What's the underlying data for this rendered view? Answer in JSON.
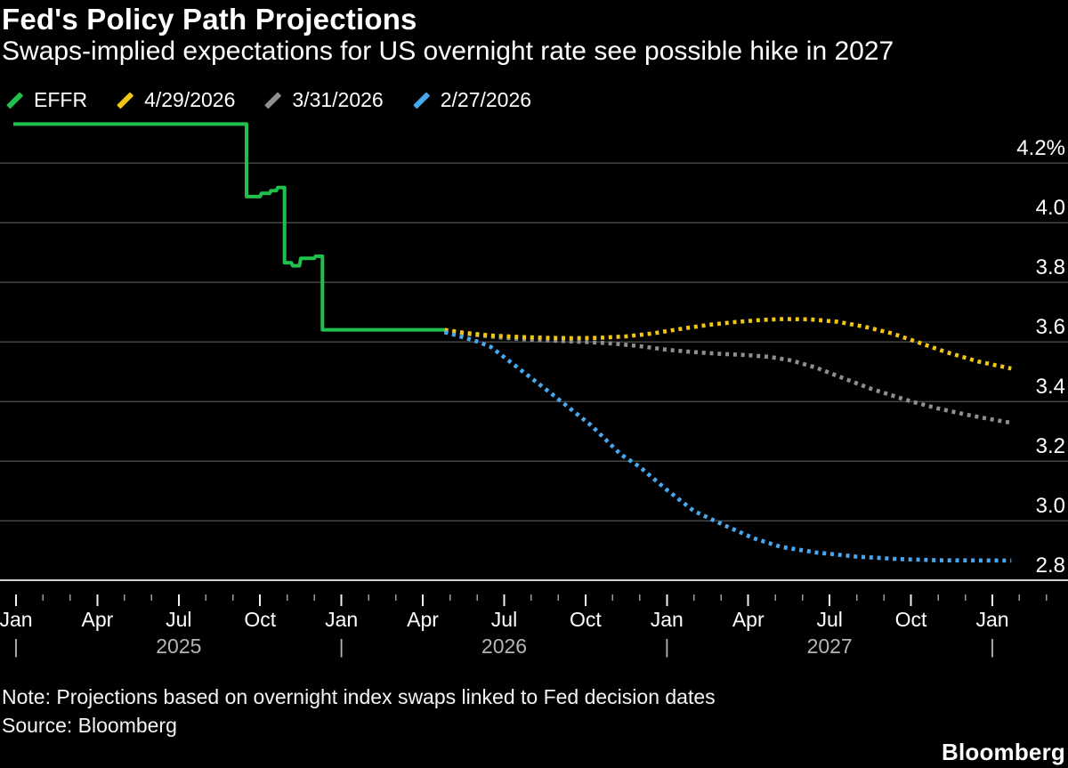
{
  "header": {
    "title": "Fed's Policy Path Projections",
    "subtitle": "Swaps-implied expectations for US overnight rate see possible hike in 2027"
  },
  "legend": [
    {
      "label": "EFFR",
      "color": "#21bf4e",
      "marker": "slash-icon"
    },
    {
      "label": "4/29/2026",
      "color": "#f0c514",
      "marker": "slash-icon"
    },
    {
      "label": "3/31/2026",
      "color": "#8f8f8f",
      "marker": "slash-icon"
    },
    {
      "label": "2/27/2026",
      "color": "#47a8f0",
      "marker": "slash-icon"
    }
  ],
  "footer": {
    "note": "Note: Projections based on overnight index swaps linked to Fed decision dates",
    "source": "Source: Bloomberg",
    "brand": "Bloomberg"
  },
  "colors": {
    "background": "#000000",
    "grid": "#454545",
    "axis_line": "#cfcfcf",
    "tick_major": "#f0f0f0",
    "tick_minor": "#9a9a9a",
    "axis_label": "#ffffff",
    "year_label": "#b5b5b5"
  },
  "chart_data": {
    "type": "line",
    "title": "Fed's Policy Path Projections",
    "x_unit": "months since Jan 2025",
    "x_range_months": [
      0,
      36
    ],
    "ylim": [
      2.8,
      4.2
    ],
    "grid": "horizontal",
    "legend_position": "top",
    "y_axis": {
      "side": "right",
      "ticks": [
        {
          "r": 4.2,
          "label": "4.2%"
        },
        {
          "r": 4.0,
          "label": "4.0"
        },
        {
          "r": 3.8,
          "label": "3.8"
        },
        {
          "r": 3.6,
          "label": "3.6"
        },
        {
          "r": 3.4,
          "label": "3.4"
        },
        {
          "r": 3.2,
          "label": "3.2"
        },
        {
          "r": 3.0,
          "label": "3.0"
        },
        {
          "r": 2.8,
          "label": "2.8"
        }
      ]
    },
    "x_axis": {
      "minor_tick_months": [
        0,
        1,
        2,
        3,
        4,
        5,
        6,
        7,
        8,
        9,
        10,
        11,
        12,
        13,
        14,
        15,
        16,
        17,
        18,
        19,
        20,
        21,
        22,
        23,
        24,
        25,
        26,
        27,
        28,
        29,
        30,
        31,
        32,
        33,
        34,
        35,
        36,
        37,
        38
      ],
      "quarter_labels": [
        {
          "m": 0,
          "label": "Jan"
        },
        {
          "m": 3,
          "label": "Apr"
        },
        {
          "m": 6,
          "label": "Jul"
        },
        {
          "m": 9,
          "label": "Oct"
        },
        {
          "m": 12,
          "label": "Jan"
        },
        {
          "m": 15,
          "label": "Apr"
        },
        {
          "m": 18,
          "label": "Jul"
        },
        {
          "m": 21,
          "label": "Oct"
        },
        {
          "m": 24,
          "label": "Jan"
        },
        {
          "m": 27,
          "label": "Apr"
        },
        {
          "m": 30,
          "label": "Jul"
        },
        {
          "m": 33,
          "label": "Oct"
        },
        {
          "m": 36,
          "label": "Jan"
        }
      ],
      "year_bar_months": [
        0,
        12,
        24,
        36
      ],
      "year_bar_glyph": "|",
      "year_labels": [
        {
          "m": 6,
          "label": "2025"
        },
        {
          "m": 18,
          "label": "2026"
        },
        {
          "m": 30,
          "label": "2027"
        }
      ]
    },
    "series": [
      {
        "name": "EFFR",
        "color": "#21bf4e",
        "style": "solid",
        "points": [
          [
            -0.1,
            4.33
          ],
          [
            8.5,
            4.33
          ],
          [
            8.5,
            4.087
          ],
          [
            9.0,
            4.087
          ],
          [
            9.05,
            4.098
          ],
          [
            9.35,
            4.098
          ],
          [
            9.4,
            4.107
          ],
          [
            9.6,
            4.107
          ],
          [
            9.65,
            4.117
          ],
          [
            9.9,
            4.117
          ],
          [
            9.9,
            3.865
          ],
          [
            10.15,
            3.865
          ],
          [
            10.2,
            3.855
          ],
          [
            10.45,
            3.855
          ],
          [
            10.5,
            3.88
          ],
          [
            11.0,
            3.88
          ],
          [
            11.05,
            3.887
          ],
          [
            11.3,
            3.887
          ],
          [
            11.3,
            3.64
          ],
          [
            15.8,
            3.64
          ]
        ]
      },
      {
        "name": "3/31/2026",
        "color": "#8f8f8f",
        "style": "dotted",
        "points": [
          [
            15.8,
            3.636
          ],
          [
            17.0,
            3.622
          ],
          [
            18.0,
            3.613
          ],
          [
            19.0,
            3.607
          ],
          [
            20.0,
            3.603
          ],
          [
            21.0,
            3.599
          ],
          [
            22.0,
            3.594
          ],
          [
            23.0,
            3.585
          ],
          [
            24.0,
            3.573
          ],
          [
            25.0,
            3.565
          ],
          [
            26.0,
            3.559
          ],
          [
            27.0,
            3.555
          ],
          [
            27.8,
            3.549
          ],
          [
            28.6,
            3.537
          ],
          [
            29.5,
            3.513
          ],
          [
            30.5,
            3.478
          ],
          [
            31.5,
            3.443
          ],
          [
            32.4,
            3.417
          ],
          [
            33.0,
            3.4
          ],
          [
            34.0,
            3.376
          ],
          [
            35.0,
            3.356
          ],
          [
            36.0,
            3.339
          ],
          [
            36.7,
            3.328
          ]
        ]
      },
      {
        "name": "4/29/2026",
        "color": "#f0c514",
        "style": "dotted",
        "points": [
          [
            15.8,
            3.64
          ],
          [
            16.5,
            3.63
          ],
          [
            17.5,
            3.621
          ],
          [
            18.5,
            3.616
          ],
          [
            19.5,
            3.613
          ],
          [
            20.5,
            3.612
          ],
          [
            21.5,
            3.613
          ],
          [
            22.5,
            3.618
          ],
          [
            23.5,
            3.628
          ],
          [
            24.5,
            3.643
          ],
          [
            25.5,
            3.656
          ],
          [
            26.5,
            3.666
          ],
          [
            27.5,
            3.673
          ],
          [
            28.3,
            3.676
          ],
          [
            29.3,
            3.675
          ],
          [
            30.3,
            3.667
          ],
          [
            31.3,
            3.65
          ],
          [
            32.3,
            3.628
          ],
          [
            33.2,
            3.6
          ],
          [
            34.3,
            3.565
          ],
          [
            35.5,
            3.533
          ],
          [
            36.7,
            3.51
          ]
        ]
      },
      {
        "name": "2/27/2026",
        "color": "#47a8f0",
        "style": "dotted",
        "points": [
          [
            15.8,
            3.632
          ],
          [
            16.3,
            3.62
          ],
          [
            17.0,
            3.601
          ],
          [
            17.5,
            3.583
          ],
          [
            18.4,
            3.52
          ],
          [
            19.5,
            3.443
          ],
          [
            20.1,
            3.4
          ],
          [
            21.2,
            3.32
          ],
          [
            22.3,
            3.222
          ],
          [
            23.0,
            3.18
          ],
          [
            24.0,
            3.103
          ],
          [
            25.0,
            3.032
          ],
          [
            26.1,
            2.985
          ],
          [
            27.2,
            2.941
          ],
          [
            28.2,
            2.912
          ],
          [
            29.5,
            2.893
          ],
          [
            31.0,
            2.879
          ],
          [
            32.5,
            2.871
          ],
          [
            34.0,
            2.867
          ],
          [
            36.7,
            2.866
          ]
        ]
      }
    ]
  }
}
